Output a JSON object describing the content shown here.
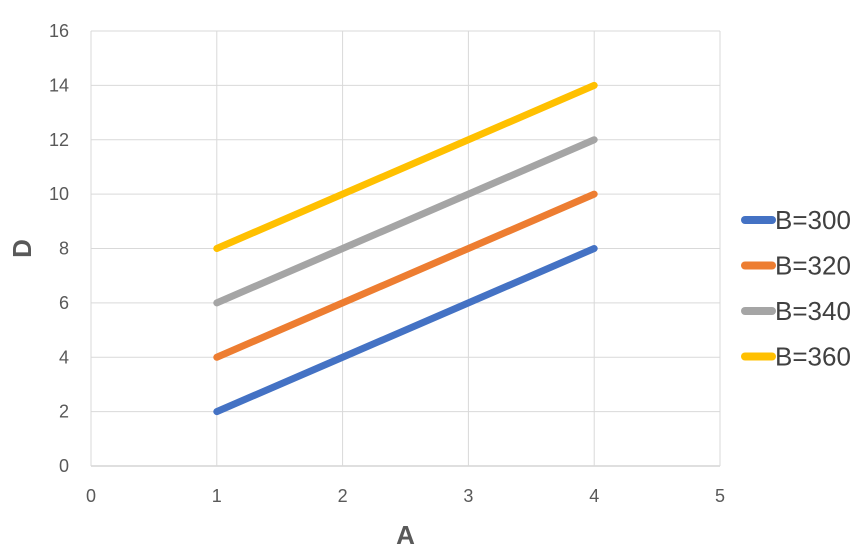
{
  "chart_data": {
    "type": "line",
    "xlabel": "A",
    "ylabel": "D",
    "xlim": [
      0,
      5
    ],
    "ylim": [
      0,
      16
    ],
    "xticks": [
      0,
      1,
      2,
      3,
      4,
      5
    ],
    "yticks": [
      0,
      2,
      4,
      6,
      8,
      10,
      12,
      14,
      16
    ],
    "grid": true,
    "legend_position": "right",
    "series": [
      {
        "name": "B=300",
        "color": "#4472C4",
        "x": [
          1,
          2,
          3,
          4
        ],
        "y": [
          2,
          4,
          6,
          8
        ]
      },
      {
        "name": "B=320",
        "color": "#ED7D31",
        "x": [
          1,
          2,
          3,
          4
        ],
        "y": [
          4,
          6,
          8,
          10
        ]
      },
      {
        "name": "B=340",
        "color": "#A5A5A5",
        "x": [
          1,
          2,
          3,
          4
        ],
        "y": [
          6,
          8,
          10,
          12
        ]
      },
      {
        "name": "B=360",
        "color": "#FFC000",
        "x": [
          1,
          2,
          3,
          4
        ],
        "y": [
          8,
          10,
          12,
          14
        ]
      }
    ]
  }
}
